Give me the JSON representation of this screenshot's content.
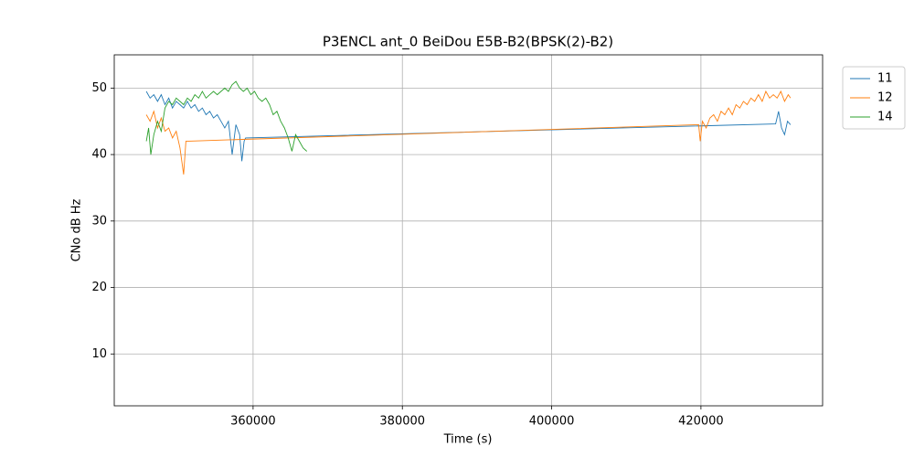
{
  "chart_data": {
    "type": "line",
    "title": "P3ENCL ant_0 BeiDou E5B-B2(BPSK(2)-B2)",
    "x_label": "Time (s)",
    "y_label": "CNo dB Hz",
    "xlim": [
      341400,
      436300
    ],
    "ylim": [
      2.2,
      55
    ],
    "xticks": [
      360000,
      380000,
      400000,
      420000
    ],
    "yticks": [
      10,
      20,
      30,
      40,
      50
    ],
    "grid": true,
    "legend": "outside-upper-right",
    "series": [
      {
        "name": "11",
        "color": "#1f77b4",
        "x": [
          345700,
          346200,
          346700,
          347200,
          347700,
          348200,
          348700,
          349200,
          349700,
          350200,
          350700,
          351200,
          351700,
          352200,
          352700,
          353200,
          353700,
          354200,
          354700,
          355200,
          355700,
          356200,
          356700,
          357200,
          357700,
          358200,
          358500,
          358800,
          359000,
          430000,
          430400,
          430800,
          431200,
          431600,
          432000
        ],
        "values": [
          49.5,
          48.5,
          49,
          48,
          49,
          47.5,
          48.5,
          47,
          48,
          47.5,
          47,
          48,
          47,
          47.5,
          46.5,
          47,
          46,
          46.5,
          45.5,
          46,
          45,
          44,
          45,
          40,
          44.5,
          43,
          39,
          42,
          42.5,
          44.6,
          46.5,
          44,
          43,
          45,
          44.5
        ]
      },
      {
        "name": "12",
        "color": "#ff7f0e",
        "x": [
          345700,
          346200,
          346700,
          347200,
          347700,
          348200,
          348700,
          349200,
          349700,
          350200,
          350700,
          351000,
          419700,
          419900,
          420200,
          420700,
          421200,
          421700,
          422200,
          422700,
          423200,
          423700,
          424200,
          424700,
          425200,
          425700,
          426200,
          426700,
          427200,
          427700,
          428200,
          428700,
          429200,
          429700,
          430200,
          430700,
          431200,
          431700,
          432000
        ],
        "values": [
          46,
          45,
          46.5,
          44,
          45.5,
          43.5,
          44,
          42.5,
          43.5,
          41,
          37,
          42,
          44.5,
          42,
          45,
          44,
          45.5,
          46,
          45,
          46.5,
          46,
          47,
          46,
          47.5,
          47,
          48,
          47.5,
          48.5,
          48,
          49,
          48,
          49.5,
          48.5,
          49,
          48.5,
          49.5,
          48,
          49,
          48.5
        ]
      },
      {
        "name": "14",
        "color": "#2ca02c",
        "x": [
          345700,
          346000,
          346300,
          346700,
          347200,
          347700,
          348200,
          348700,
          349200,
          349700,
          350200,
          350700,
          351200,
          351700,
          352200,
          352700,
          353200,
          353700,
          354200,
          354700,
          355200,
          355700,
          356200,
          356700,
          357200,
          357700,
          358200,
          358700,
          359200,
          359700,
          360200,
          360700,
          361200,
          361700,
          362200,
          362700,
          363200,
          363700,
          364200,
          364700,
          365200,
          365700,
          366200,
          366700,
          367200
        ],
        "values": [
          42,
          44,
          40,
          43,
          45,
          43.5,
          47,
          48,
          47.5,
          48.5,
          48,
          47.5,
          48.5,
          48,
          49,
          48.5,
          49.5,
          48.5,
          49,
          49.5,
          49,
          49.5,
          50,
          49.5,
          50.5,
          51,
          50,
          49.5,
          50,
          49,
          49.5,
          48.5,
          48,
          48.5,
          47.5,
          46,
          46.5,
          45,
          44,
          42.5,
          40.5,
          43,
          42,
          41,
          40.5
        ]
      }
    ]
  }
}
